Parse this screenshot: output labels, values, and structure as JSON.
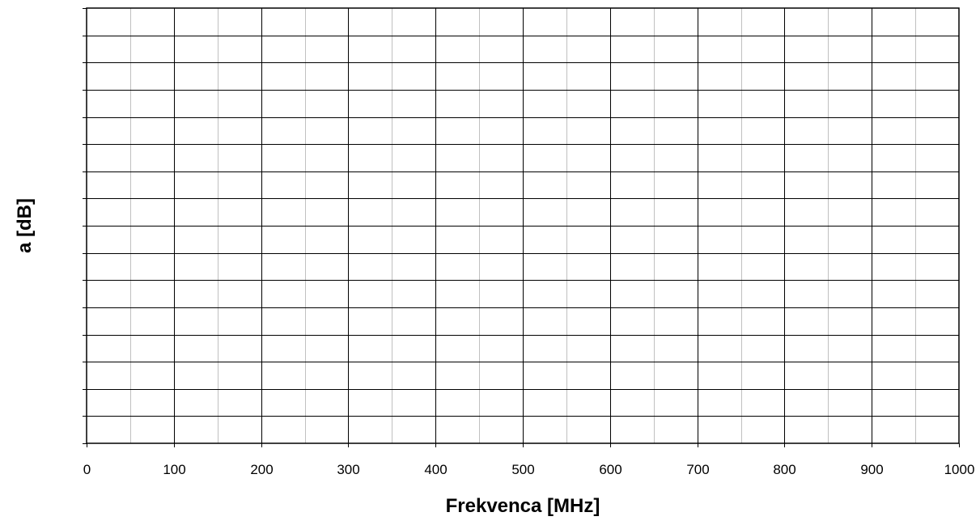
{
  "chart_data": {
    "type": "line",
    "title": "",
    "xlabel": "Frekvenca [MHz]",
    "ylabel": "a [dB]",
    "xlim": [
      0,
      1000
    ],
    "x_major_ticks": [
      0,
      100,
      200,
      300,
      400,
      500,
      600,
      700,
      800,
      900,
      1000
    ],
    "x_tick_labels": [
      "0",
      "100",
      "200",
      "300",
      "400",
      "500",
      "600",
      "700",
      "800",
      "900",
      "1000"
    ],
    "x_minor_step": 50,
    "y_gridline_count": 16,
    "y_tick_labels": [],
    "grid": true,
    "series": [],
    "colors": {
      "major_grid": "#000000",
      "minor_grid": "#c0c0c0",
      "background": "#ffffff"
    }
  }
}
